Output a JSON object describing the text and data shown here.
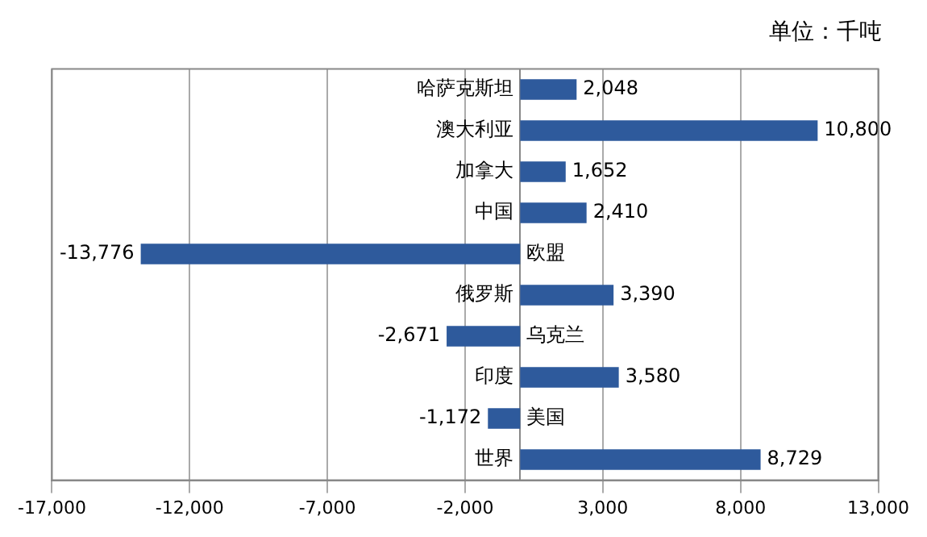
{
  "chart_data": {
    "type": "bar",
    "orientation": "horizontal",
    "title": "单位：千吨",
    "categories": [
      "哈萨克斯坦",
      "澳大利亚",
      "加拿大",
      "中国",
      "欧盟",
      "俄罗斯",
      "乌克兰",
      "印度",
      "美国",
      "世界"
    ],
    "values": [
      2048,
      10800,
      1652,
      2410,
      -13776,
      3390,
      -2671,
      3580,
      -1172,
      8729
    ],
    "value_labels": [
      "2,048",
      "10,800",
      "1,652",
      "2,410",
      "-13,776",
      "3,390",
      "-2,671",
      "3,580",
      "-1,172",
      "8,729"
    ],
    "color": "#2e5a9c",
    "xlim": [
      -17000,
      13000
    ],
    "xticks": [
      {
        "value": -17000,
        "label": "-17,000"
      },
      {
        "value": -12000,
        "label": "-12,000"
      },
      {
        "value": -7000,
        "label": "-7,000"
      },
      {
        "value": -2000,
        "label": "-2,000"
      },
      {
        "value": 3000,
        "label": "3,000"
      },
      {
        "value": 8000,
        "label": "8,000"
      },
      {
        "value": 13000,
        "label": "13,000"
      }
    ],
    "grid": "x",
    "legend": false
  }
}
